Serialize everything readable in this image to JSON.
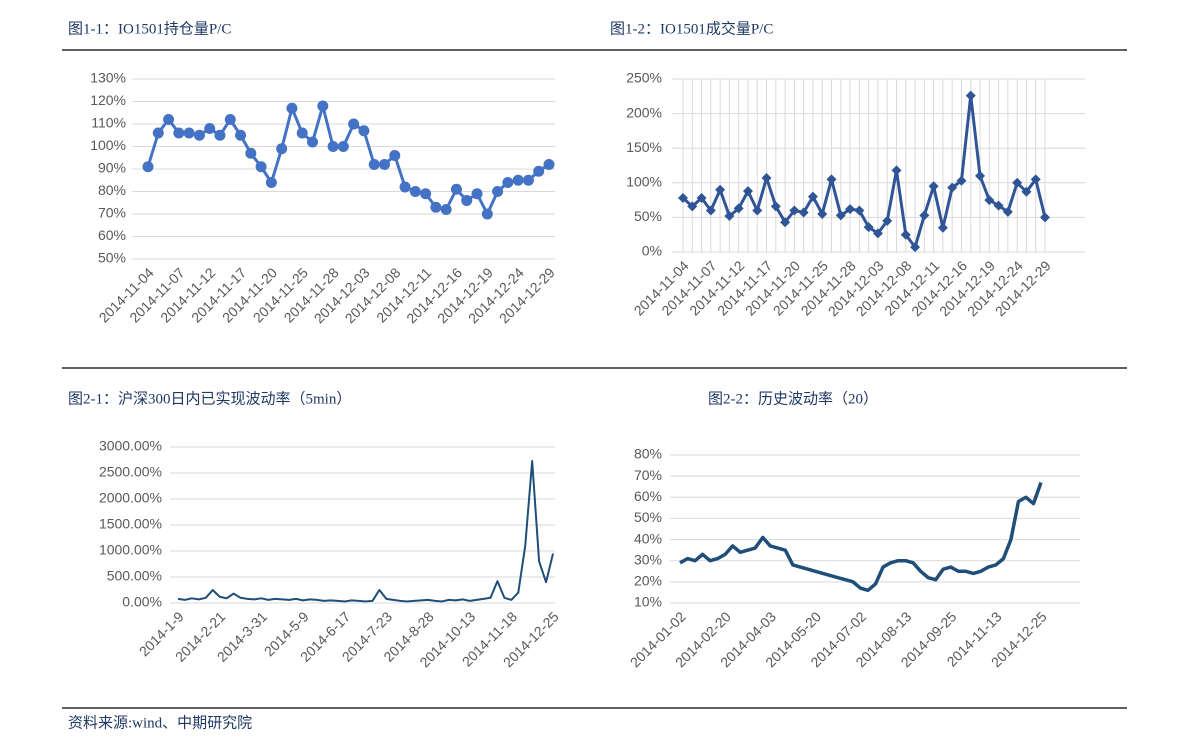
{
  "chart_data": [
    {
      "type": "line",
      "title": "图1-1：IO1501持仓量P/C",
      "marker": "circle",
      "color": "#4472c4",
      "grid": true,
      "xgrid": false,
      "categories": [
        "2014-11-04",
        null,
        null,
        "2014-11-07",
        null,
        null,
        "2014-11-12",
        null,
        null,
        "2014-11-17",
        null,
        null,
        "2014-11-20",
        null,
        null,
        "2014-11-25",
        null,
        null,
        "2014-11-28",
        null,
        null,
        "2014-12-03",
        null,
        null,
        "2014-12-08",
        null,
        null,
        "2014-12-11",
        null,
        null,
        "2014-12-16",
        null,
        null,
        "2014-12-19",
        null,
        null,
        "2014-12-24",
        null,
        null,
        "2014-12-29"
      ],
      "values": [
        91,
        106,
        112,
        106,
        106,
        105,
        108,
        105,
        112,
        105,
        97,
        91,
        84,
        99,
        117,
        106,
        102,
        118,
        100,
        100,
        110,
        107,
        92,
        92,
        96,
        82,
        80,
        79,
        73,
        72,
        81,
        76,
        79,
        70,
        80,
        84,
        85,
        85,
        89,
        92
      ],
      "ylim": [
        50,
        130
      ],
      "yticks": [
        {
          "value": 50,
          "label": "50%"
        },
        {
          "value": 60,
          "label": "60%"
        },
        {
          "value": 70,
          "label": "70%"
        },
        {
          "value": 80,
          "label": "80%"
        },
        {
          "value": 90,
          "label": "90%"
        },
        {
          "value": 100,
          "label": "100%"
        },
        {
          "value": 110,
          "label": "110%"
        },
        {
          "value": 120,
          "label": "120%"
        },
        {
          "value": 130,
          "label": "130%"
        }
      ]
    },
    {
      "type": "line",
      "title": "图1-2：IO1501成交量P/C",
      "marker": "diamond",
      "color": "#2f5597",
      "grid": true,
      "xgrid": true,
      "categories": [
        "2014-11-04",
        null,
        null,
        "2014-11-07",
        null,
        null,
        "2014-11-12",
        null,
        null,
        "2014-11-17",
        null,
        null,
        "2014-11-20",
        null,
        null,
        "2014-11-25",
        null,
        null,
        "2014-11-28",
        null,
        null,
        "2014-12-03",
        null,
        null,
        "2014-12-08",
        null,
        null,
        "2014-12-11",
        null,
        null,
        "2014-12-16",
        null,
        null,
        "2014-12-19",
        null,
        null,
        "2014-12-24",
        null,
        null,
        "2014-12-29"
      ],
      "values": [
        78,
        66,
        78,
        60,
        90,
        52,
        63,
        88,
        60,
        107,
        66,
        43,
        60,
        57,
        80,
        55,
        105,
        53,
        62,
        60,
        36,
        27,
        45,
        118,
        25,
        7,
        53,
        95,
        35,
        93,
        103,
        226,
        110,
        75,
        67,
        58,
        100,
        87,
        105,
        50
      ],
      "ylim": [
        0,
        250
      ],
      "yticks": [
        {
          "value": 0,
          "label": "0%"
        },
        {
          "value": 50,
          "label": "50%"
        },
        {
          "value": 100,
          "label": "100%"
        },
        {
          "value": 150,
          "label": "150%"
        },
        {
          "value": 200,
          "label": "200%"
        },
        {
          "value": 250,
          "label": "250%"
        }
      ]
    },
    {
      "type": "line",
      "title": "图2-1：沪深300日内已实现波动率（5min）",
      "marker": "none",
      "color": "#1f4e79",
      "grid": true,
      "xgrid": false,
      "categories": [
        "2014-1-9",
        null,
        null,
        null,
        null,
        null,
        "2014-2-21",
        null,
        null,
        null,
        null,
        null,
        "2014-3-31",
        null,
        null,
        null,
        null,
        null,
        "2014-5-9",
        null,
        null,
        null,
        null,
        null,
        "2014-6-17",
        null,
        null,
        null,
        null,
        null,
        "2014-7-23",
        null,
        null,
        null,
        null,
        null,
        "2014-8-28",
        null,
        null,
        null,
        null,
        null,
        "2014-10-13",
        null,
        null,
        null,
        null,
        null,
        "2014-11-18",
        null,
        null,
        null,
        null,
        null,
        "2014-12-25"
      ],
      "values": [
        80,
        60,
        90,
        70,
        100,
        250,
        120,
        90,
        180,
        100,
        80,
        70,
        90,
        60,
        80,
        70,
        60,
        80,
        50,
        70,
        60,
        40,
        50,
        40,
        30,
        50,
        40,
        30,
        40,
        250,
        80,
        60,
        40,
        30,
        40,
        50,
        60,
        40,
        30,
        60,
        50,
        70,
        40,
        60,
        80,
        100,
        420,
        100,
        60,
        200,
        1100,
        2730,
        800,
        400,
        950
      ],
      "ylim": [
        0,
        3000
      ],
      "yticks": [
        {
          "value": 0,
          "label": "0.00%"
        },
        {
          "value": 500,
          "label": "500.00%"
        },
        {
          "value": 1000,
          "label": "1000.00%"
        },
        {
          "value": 1500,
          "label": "1500.00%"
        },
        {
          "value": 2000,
          "label": "2000.00%"
        },
        {
          "value": 2500,
          "label": "2500.00%"
        },
        {
          "value": 3000,
          "label": "3000.00%"
        }
      ]
    },
    {
      "type": "line",
      "title": "图2-2：历史波动率（20）",
      "marker": "none",
      "color": "#1f4e79",
      "grid": true,
      "xgrid": false,
      "categories": [
        "2014-01-02",
        null,
        null,
        null,
        null,
        null,
        "2014-02-20",
        null,
        null,
        null,
        null,
        null,
        "2014-04-03",
        null,
        null,
        null,
        null,
        null,
        "2014-05-20",
        null,
        null,
        null,
        null,
        null,
        "2014-07-02",
        null,
        null,
        null,
        null,
        null,
        "2014-08-13",
        null,
        null,
        null,
        null,
        null,
        "2014-09-25",
        null,
        null,
        null,
        null,
        null,
        "2014-11-13",
        null,
        null,
        null,
        null,
        null,
        "2014-12-25"
      ],
      "values": [
        29,
        31,
        30,
        33,
        30,
        31,
        33,
        37,
        34,
        35,
        36,
        41,
        37,
        36,
        35,
        28,
        27,
        26,
        25,
        24,
        23,
        22,
        21,
        20,
        17,
        16,
        19,
        27,
        29,
        30,
        30,
        29,
        25,
        22,
        21,
        26,
        27,
        25,
        25,
        24,
        25,
        27,
        28,
        31,
        40,
        58,
        60,
        57,
        67
      ],
      "ylim": [
        10,
        80
      ],
      "yticks": [
        {
          "value": 10,
          "label": "10%"
        },
        {
          "value": 20,
          "label": "20%"
        },
        {
          "value": 30,
          "label": "30%"
        },
        {
          "value": 40,
          "label": "40%"
        },
        {
          "value": 50,
          "label": "50%"
        },
        {
          "value": 60,
          "label": "60%"
        },
        {
          "value": 70,
          "label": "70%"
        },
        {
          "value": 80,
          "label": "80%"
        }
      ]
    }
  ],
  "source": "资料来源:wind、中期研究院"
}
